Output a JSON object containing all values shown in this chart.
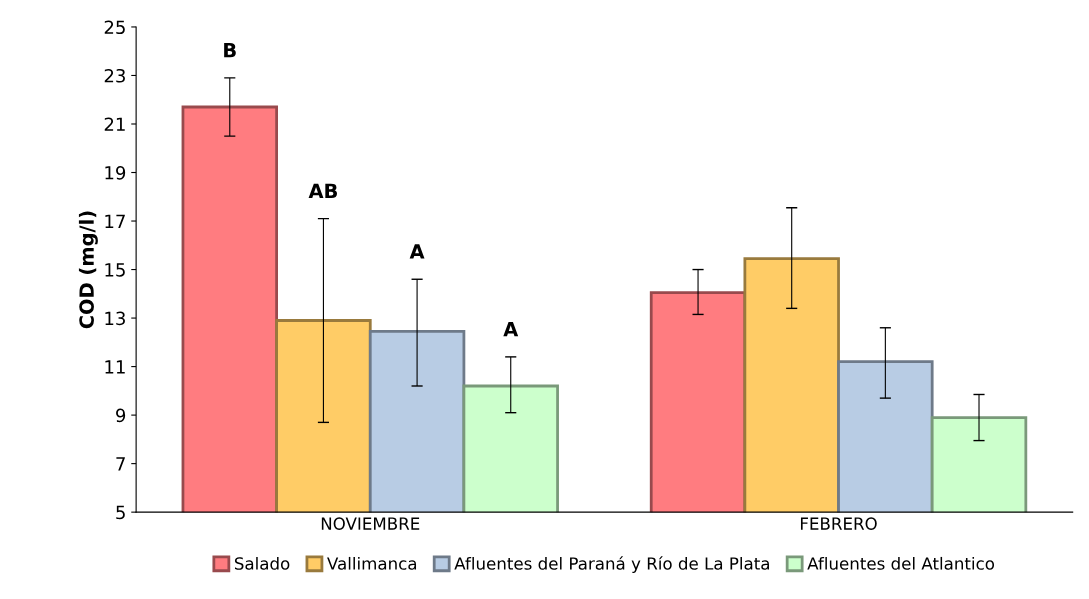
{
  "chart_data": {
    "type": "bar",
    "ylabel": "COD (mg/l)",
    "categories": [
      "NOVIEMBRE",
      "FEBRERO"
    ],
    "series": [
      {
        "name": "Salado",
        "color": "#ff7c80",
        "values": [
          21.7,
          14.05
        ],
        "errors": [
          [
            20.5,
            22.9
          ],
          [
            13.15,
            15.0
          ]
        ]
      },
      {
        "name": "Vallimanca",
        "color": "#ffcc66",
        "values": [
          12.9,
          15.45
        ],
        "errors": [
          [
            8.7,
            17.1
          ],
          [
            13.4,
            17.55
          ]
        ]
      },
      {
        "name": "Afluentes del Paraná y Río de La Plata",
        "color": "#b8cce4",
        "values": [
          12.45,
          11.2
        ],
        "errors": [
          [
            10.2,
            14.6
          ],
          [
            9.7,
            12.6
          ]
        ]
      },
      {
        "name": "Afluentes del Atlantico",
        "color": "#ccffcc",
        "values": [
          10.2,
          8.9
        ],
        "errors": [
          [
            9.1,
            11.4
          ],
          [
            7.95,
            9.85
          ]
        ]
      }
    ],
    "annotations": [
      "B",
      "AB",
      "A",
      "A"
    ],
    "ylim": [
      5,
      25
    ],
    "yticks": [
      5,
      7,
      9,
      11,
      13,
      15,
      17,
      19,
      21,
      23,
      25
    ],
    "grid": false,
    "legend": "bottom"
  }
}
